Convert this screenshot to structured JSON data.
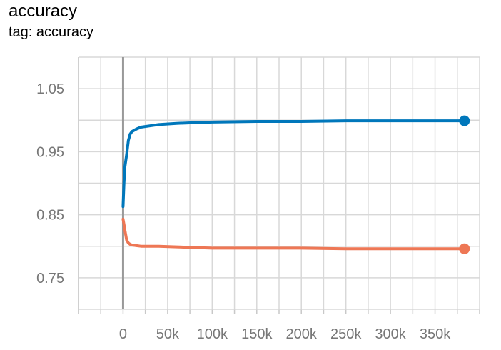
{
  "header": {
    "title": "accuracy",
    "tag_label": "tag: accuracy"
  },
  "chart_data": {
    "type": "line",
    "title": "accuracy",
    "subtitle": "tag: accuracy",
    "xlabel": "",
    "ylabel": "",
    "xlim": [
      -50000,
      400000
    ],
    "ylim": [
      0.7,
      1.1
    ],
    "x_ticks": [
      0,
      50000,
      100000,
      150000,
      200000,
      250000,
      300000,
      350000
    ],
    "x_tick_labels": [
      "0",
      "50k",
      "100k",
      "150k",
      "200k",
      "250k",
      "300k",
      "350k"
    ],
    "y_ticks": [
      0.75,
      0.85,
      0.95,
      1.05
    ],
    "y_tick_labels": [
      "0.75",
      "0.85",
      "0.95",
      "1.05"
    ],
    "grid": true,
    "series": [
      {
        "color": "#0077bb",
        "x": [
          0,
          1000,
          2000,
          4000,
          6000,
          8000,
          10000,
          15000,
          20000,
          30000,
          40000,
          60000,
          80000,
          100000,
          150000,
          200000,
          250000,
          300000,
          350000,
          383000
        ],
        "y": [
          0.863,
          0.9,
          0.925,
          0.945,
          0.968,
          0.978,
          0.982,
          0.986,
          0.989,
          0.991,
          0.993,
          0.995,
          0.996,
          0.997,
          0.998,
          0.998,
          0.999,
          0.999,
          0.999,
          0.999
        ]
      },
      {
        "color": "#ee7755",
        "x": [
          0,
          1000,
          2000,
          3000,
          4000,
          6000,
          8000,
          10000,
          15000,
          20000,
          30000,
          40000,
          60000,
          80000,
          100000,
          150000,
          200000,
          250000,
          300000,
          350000,
          383000
        ],
        "y": [
          0.843,
          0.835,
          0.826,
          0.818,
          0.81,
          0.805,
          0.803,
          0.802,
          0.801,
          0.8,
          0.8,
          0.8,
          0.799,
          0.798,
          0.797,
          0.797,
          0.797,
          0.796,
          0.796,
          0.796,
          0.796
        ]
      }
    ]
  }
}
